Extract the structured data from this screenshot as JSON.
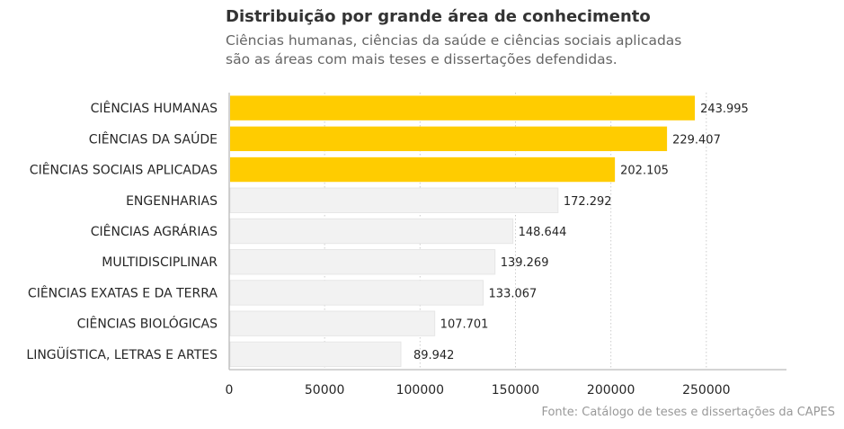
{
  "header": {
    "title": "Distribuição por grande área de conhecimento",
    "subtitle_lines": [
      "Ciências humanas, ciências da saúde e ciências sociais aplicadas",
      "são as áreas com mais teses e dissertações defendidas."
    ]
  },
  "footer": {
    "source": "Fonte: Catálogo de teses e dissertações da CAPES"
  },
  "chart_data": {
    "type": "bar",
    "orientation": "horizontal",
    "categories": [
      "CIÊNCIAS HUMANAS",
      "CIÊNCIAS DA SAÚDE",
      "CIÊNCIAS SOCIAIS APLICADAS",
      "ENGENHARIAS",
      "CIÊNCIAS AGRÁRIAS",
      "MULTIDISCIPLINAR",
      "CIÊNCIAS EXATAS E DA TERRA",
      "CIÊNCIAS BIOLÓGICAS",
      "LINGÜÍSTICA, LETRAS E ARTES"
    ],
    "values": [
      243995,
      229407,
      202105,
      172292,
      148644,
      139269,
      133067,
      107701,
      89942
    ],
    "value_labels": [
      "243.995",
      "229.407",
      "202.105",
      "172.292",
      "148.644",
      "139.269",
      "133.067",
      "107.701",
      "89.942"
    ],
    "highlighted": [
      true,
      true,
      true,
      false,
      false,
      false,
      false,
      false,
      false
    ],
    "xlim": [
      0,
      292000
    ],
    "xticks": [
      0,
      50000,
      100000,
      150000,
      200000,
      250000
    ],
    "xtick_labels": [
      "0",
      "50000",
      "100000",
      "150000",
      "200000",
      "250000"
    ],
    "xlabel": "",
    "ylabel": "",
    "grid": "vertical dotted",
    "colors": {
      "highlight": "#ffcc00",
      "muted": "#f2f2f2",
      "muted_edge": "#e6e6e6"
    }
  }
}
